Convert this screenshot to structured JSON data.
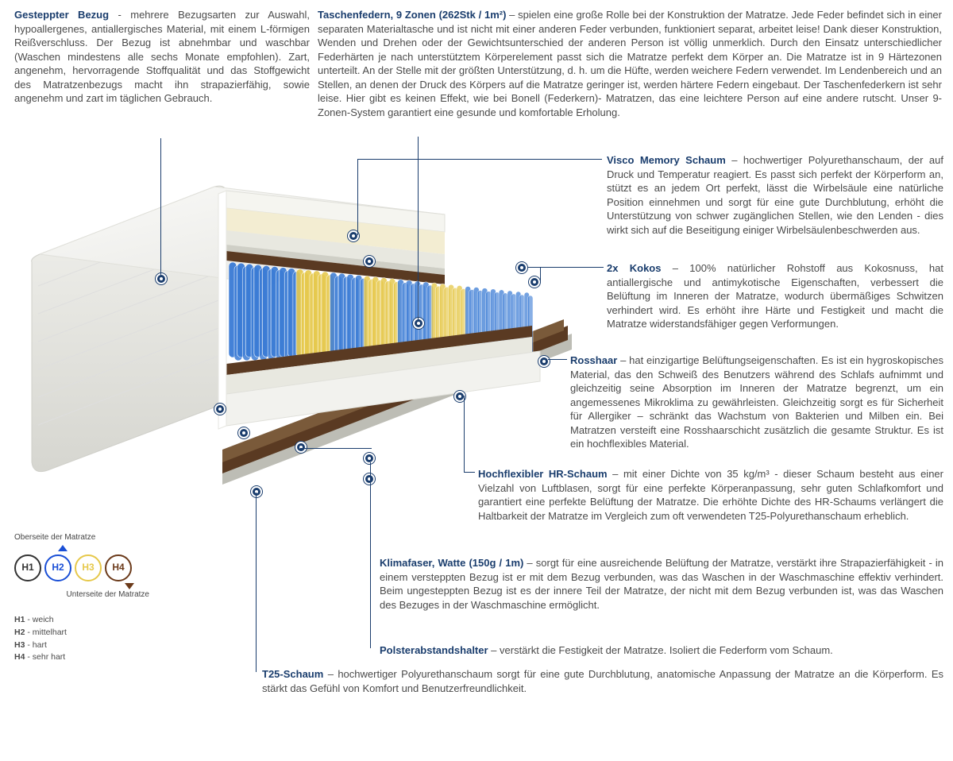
{
  "colors": {
    "title": "#1a3d6d",
    "text": "#4a4a4a",
    "marker": "#1a3d6d",
    "spring_zone_colors": [
      "#3a7bd5",
      "#3a7bd5",
      "#e6c84a",
      "#3a7bd5",
      "#e6c84a",
      "#3a7bd5",
      "#e6c84a",
      "#3a7bd5",
      "#3a7bd5"
    ],
    "cover": "#f0f0ee",
    "foam_visco": "#f3edd2",
    "foam_t25": "#e8e8e0",
    "kokos": "#5a3a22",
    "rosshaar": "#7a5a3a",
    "felt": "#bdbdb5",
    "base": "#e3e3dc"
  },
  "sections": {
    "bezug": {
      "title": "Gesteppter Bezug",
      "sep": " - ",
      "body": "mehrere Bezugsarten zur Auswahl, hypoallergenes, antiallergisches Material, mit einem L-förmigen Reißverschluss. Der Bezug ist abnehmbar und waschbar (Waschen mindestens alle sechs Monate empfohlen). Zart, angenehm, hervorragende Stoffqualität und das Stoffgewicht des Matratzenbezugs macht ihn strapazierfähig, sowie angenehm und zart im täglichen Gebrauch."
    },
    "federn": {
      "title": "Taschenfedern, 9 Zonen (262Stk / 1m²)",
      "sep": " – ",
      "body": "spielen eine große Rolle bei der Konstruktion der Matratze. Jede Feder befindet sich in einer separaten Materialtasche und ist nicht mit einer anderen Feder verbunden, funktioniert separat, arbeitet leise! Dank dieser Konstruktion, Wenden und Drehen oder der Gewichtsunterschied der anderen Person ist völlig unmerklich. Durch den Einsatz unterschiedlicher Federhärten je nach unterstütztem Körperelement passt sich die Matratze perfekt dem Körper an. Die Matratze ist in 9 Härtezonen unterteilt. An der Stelle mit der größten Unterstützung, d. h. um die Hüfte, werden weichere Federn verwendet. Im Lendenbereich und an Stellen, an denen der Druck des Körpers auf die Matratze geringer ist, werden härtere Federn eingebaut. Der Taschenfederkern ist sehr leise. Hier gibt es keinen Effekt, wie bei Bonell (Federkern)- Matratzen, das eine leichtere Person auf eine andere rutscht. Unser 9-Zonen-System garantiert eine gesunde und komfortable Erholung."
    },
    "visco": {
      "title": "Visco Memory Schaum",
      "sep": " – ",
      "body": "hochwertiger Polyurethanschaum, der auf Druck und Temperatur reagiert. Es passt sich perfekt der Körperform an, stützt es an jedem Ort perfekt, lässt die Wirbelsäule eine natürliche Position einnehmen und sorgt für eine gute Durchblutung, erhöht die Unterstützung von schwer zugänglichen Stellen, wie den Lenden - dies wirkt sich auf die Beseitigung einiger Wirbelsäulenbeschwerden aus."
    },
    "kokos": {
      "title": "2x Kokos",
      "sep": " – ",
      "body": "100% natürlicher Rohstoff aus Kokosnuss, hat antiallergische und antimykotische Eigenschaften, verbessert die Belüftung im Inneren der Matratze, wodurch übermäßiges Schwitzen verhindert wird. Es erhöht ihre Härte und Festigkeit und macht die Matratze widerstandsfähiger gegen Verformungen."
    },
    "rosshaar": {
      "title": "Rosshaar",
      "sep": " – ",
      "body": "hat einzigartige Belüftungseigenschaften. Es ist ein hygroskopisches Material, das den Schweiß des Benutzers während des Schlafs aufnimmt und gleichzeitig seine Absorption im Inneren der Matratze begrenzt, um ein angemessenes Mikroklima zu gewährleisten. Gleichzeitig sorgt es für Sicherheit für Allergiker – schränkt das Wachstum von Bakterien und Milben ein. Bei Matratzen versteift eine Rosshaarschicht zusätzlich die gesamte Struktur. Es ist ein hochflexibles Material."
    },
    "hr": {
      "title": "Hochflexibler HR-Schaum",
      "sep": " – ",
      "body": "mit einer Dichte von 35 kg/m³ - dieser Schaum besteht aus einer Vielzahl von Luftblasen, sorgt für eine perfekte Körperanpassung, sehr guten Schlafkomfort und garantiert eine perfekte Belüftung der Matratze. Die erhöhte Dichte des HR-Schaums verlängert die Haltbarkeit der Matratze im Vergleich zum oft verwendeten T25-Polyurethanschaum erheblich."
    },
    "klimafaser": {
      "title": "Klimafaser, Watte (150g / 1m)",
      "sep": " – ",
      "body": "sorgt für eine ausreichende Belüftung der Matratze, verstärkt ihre Strapazierfähigkeit - in einem versteppten Bezug ist er mit dem Bezug verbunden, was das Waschen in der Waschmaschine effektiv verhindert. Beim ungesteppten Bezug ist es der innere Teil der Matratze, der nicht mit dem Bezug verbunden ist, was das Waschen des Bezuges in der Waschmaschine ermöglicht."
    },
    "polster": {
      "title": "Polsterabstandshalter",
      "sep": " – ",
      "body": "verstärkt die Festigkeit der Matratze. Isoliert die Federform vom Schaum."
    },
    "t25": {
      "title": "T25-Schaum",
      "sep": " – ",
      "body": "hochwertiger Polyurethanschaum sorgt für eine gute Durchblutung, anatomische Anpassung der Matratze an die Körperform. Es stärkt das Gefühl von Komfort und Benutzerfreundlichkeit."
    }
  },
  "legend": {
    "top_label": "Oberseite der Matratze",
    "bottom_label": "Unterseite der Matratze",
    "items": [
      {
        "code": "H1",
        "desc": "weich",
        "color": "#333333"
      },
      {
        "code": "H2",
        "desc": "mittelhart",
        "color": "#1a4fd6"
      },
      {
        "code": "H3",
        "desc": "hart",
        "color": "#e6c84a"
      },
      {
        "code": "H4",
        "desc": "sehr hart",
        "color": "#6b3a1a"
      }
    ]
  }
}
